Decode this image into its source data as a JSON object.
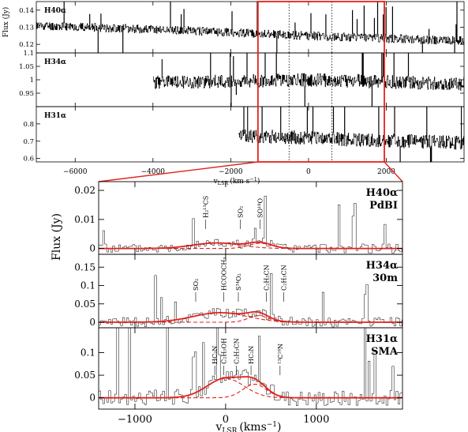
{
  "chart_data": [
    {
      "type": "line",
      "panel_group": "overview",
      "xlabel": "v_LSR (km s^-1)",
      "xlabel_main": "v",
      "xlabel_sub": "LSR",
      "xlabel_units": "(km s",
      "xlabel_exp": "−1",
      "xlabel_close": ")",
      "ylabel": "Flux (Jy)",
      "xlim": [
        -7000,
        4000
      ],
      "xticks": [
        -6000,
        -4000,
        -2000,
        0,
        2000
      ],
      "xtick_labels": [
        "−6000",
        "−4000",
        "−2000",
        "0",
        "2000"
      ],
      "highlight_window": [
        -1300,
        1950
      ],
      "vlines": [
        -500,
        600
      ],
      "panels": [
        {
          "name": "H40α",
          "ylim": [
            0.115,
            0.145
          ],
          "yticks": [
            0.12,
            0.13,
            0.14
          ],
          "ytick_labels": [
            "0.12",
            "0.13",
            "0.14"
          ],
          "x_range": [
            -7000,
            4000
          ],
          "continuum": [
            [
              -7000,
              0.131
            ],
            [
              -3000,
              0.128
            ],
            [
              0,
              0.125
            ],
            [
              4000,
              0.122
            ]
          ],
          "noise": 0.0025,
          "seed": 11
        },
        {
          "name": "H34α",
          "ylim": [
            0.9,
            1.1
          ],
          "yticks": [
            0.9,
            0.95,
            1,
            1.05,
            1.1
          ],
          "ytick_labels": [
            "",
            "0.95",
            "1",
            "1.05",
            "1.1"
          ],
          "x_range": [
            -4000,
            4000
          ],
          "continuum": [
            [
              -4000,
              0.99
            ],
            [
              0,
              1.0
            ],
            [
              4000,
              0.985
            ]
          ],
          "noise": 0.025,
          "seed": 23
        },
        {
          "name": "H31α",
          "ylim": [
            0.58,
            0.9
          ],
          "yticks": [
            0.6,
            0.7,
            0.8
          ],
          "ytick_labels": [
            "0.6",
            "0.7",
            "0.8"
          ],
          "x_range": [
            -1800,
            4000
          ],
          "continuum": [
            [
              -1800,
              0.73
            ],
            [
              0,
              0.72
            ],
            [
              1000,
              0.71
            ],
            [
              4000,
              0.69
            ]
          ],
          "noise": 0.04,
          "seed": 37
        }
      ]
    },
    {
      "type": "line",
      "panel_group": "zoom",
      "xlabel": "v_LSR (kms^-1)",
      "xlabel_main": "v",
      "xlabel_sub": "LSR",
      "xlabel_units": "(kms",
      "xlabel_exp": "−1",
      "xlabel_close": ")",
      "ylabel": "Flux (Jy)",
      "xlim": [
        -1400,
        1950
      ],
      "xticks": [
        -1000,
        0,
        1000
      ],
      "xtick_labels": [
        "−1000",
        "0",
        "1000"
      ],
      "panels": [
        {
          "name": "H40α",
          "instrument": "PdBI",
          "ylim": [
            -0.002,
            0.023
          ],
          "yticks": [
            0,
            0.01,
            0.02
          ],
          "ytick_labels": [
            "0",
            "0.01",
            "0.02"
          ],
          "noise": 0.0016,
          "seed": 5,
          "gaussians": [
            {
              "amplitude": 0.0019,
              "center": -100,
              "fwhm": 620
            },
            {
              "amplitude": 0.0018,
              "center": 380,
              "fwhm": 300
            }
          ],
          "line_ids": [
            {
              "label": "H₂¹³CS",
              "velocity": -220
            },
            {
              "label": "SO₂",
              "velocity": 160
            },
            {
              "label": "SO¹⁸O",
              "velocity": 380
            }
          ]
        },
        {
          "name": "H34α",
          "instrument": "30m",
          "ylim": [
            -0.015,
            0.185
          ],
          "yticks": [
            0,
            0.05,
            0.1,
            0.15
          ],
          "ytick_labels": [
            "0",
            "0.05",
            "0.1",
            "0.15"
          ],
          "noise": 0.013,
          "seed": 9,
          "gaussians": [
            {
              "amplitude": 0.026,
              "center": -60,
              "fwhm": 700
            },
            {
              "amplitude": 0.018,
              "center": 360,
              "fwhm": 260
            }
          ],
          "line_ids": [
            {
              "label": "SO₂",
              "velocity": -330
            },
            {
              "label": "HCOOCH₃",
              "velocity": -20
            },
            {
              "label": "S³⁴O₂",
              "velocity": 140
            },
            {
              "label": "C₂H₃CN",
              "velocity": 450
            },
            {
              "label": "C₂H₃CN",
              "velocity": 640
            }
          ]
        },
        {
          "name": "H31α",
          "instrument": "SMA",
          "ylim": [
            -0.025,
            0.155
          ],
          "yticks": [
            0,
            0.05,
            0.1
          ],
          "ytick_labels": [
            "0",
            "0.05",
            "0.1"
          ],
          "noise": 0.018,
          "seed": 17,
          "gaussians": [
            {
              "amplitude": 0.043,
              "center": 0,
              "fwhm": 480
            },
            {
              "amplitude": 0.03,
              "center": 320,
              "fwhm": 310
            }
          ],
          "line_ids": [
            {
              "label": "HC₃N",
              "velocity": -120
            },
            {
              "label": "C₂H₅OH",
              "velocity": -20
            },
            {
              "label": "C₂H₃CN",
              "velocity": 120
            },
            {
              "label": "HC₃N",
              "velocity": 280
            },
            {
              "label": "¹³C¹⁸N",
              "velocity": 600
            }
          ]
        }
      ]
    }
  ]
}
